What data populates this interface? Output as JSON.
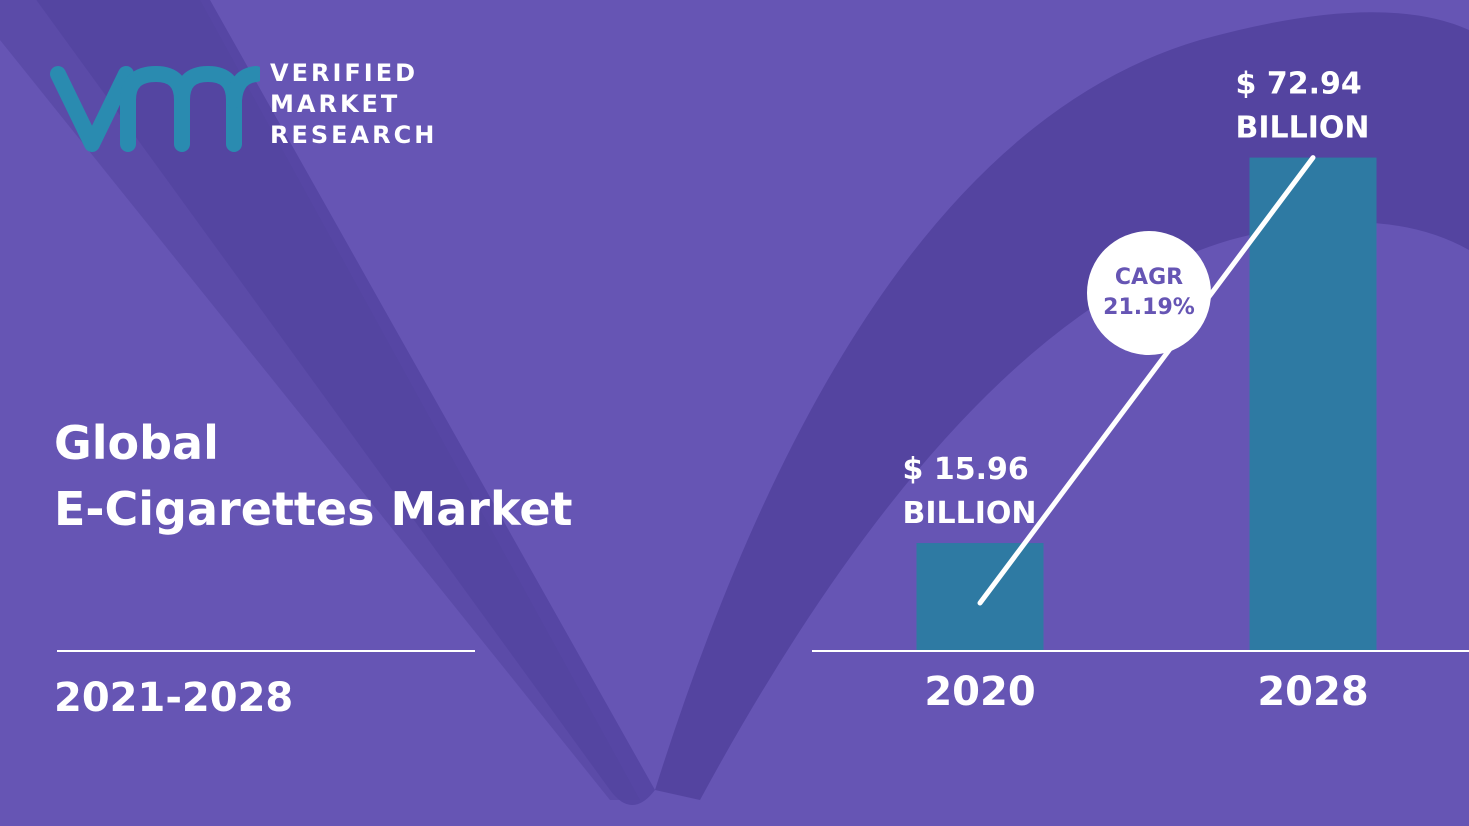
{
  "brand": {
    "line1": "VERIFIED",
    "line2": "MARKET",
    "line3": "RESEARCH",
    "logo_mark_text": "vmr",
    "logo_color": "#2a8bb0"
  },
  "title": {
    "line1": "Global",
    "line2": "E-Cigarettes Market"
  },
  "period": "2021-2028",
  "colors": {
    "background": "#6655b4",
    "background_shape": "#5444a0",
    "bar": "#2e7aa3",
    "text": "#ffffff",
    "cagr_text": "#6655b4"
  },
  "chart_data": {
    "type": "bar",
    "categories": [
      "2020",
      "2028"
    ],
    "values": [
      15.96,
      72.94
    ],
    "value_labels": [
      [
        "$ 15.96",
        "BILLION"
      ],
      [
        "$ 72.94",
        "BILLION"
      ]
    ],
    "units": "$ Billion",
    "ylim": [
      0,
      85
    ],
    "grid": false,
    "cagr": {
      "label": "CAGR",
      "value": "21.19%"
    }
  }
}
